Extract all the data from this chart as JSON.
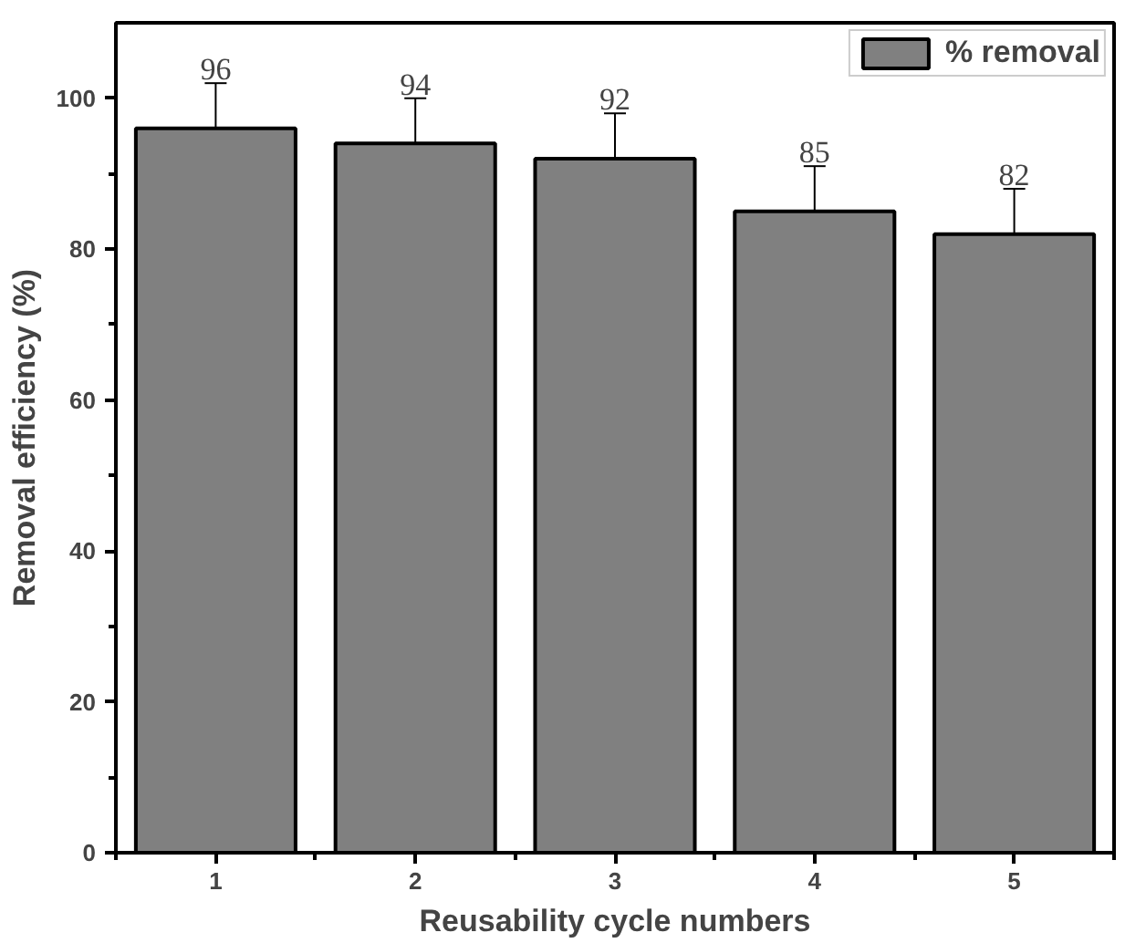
{
  "chart_data": {
    "type": "bar",
    "xlabel": "Reusability cycle numbers",
    "ylabel": "Removal efficiency (%)",
    "x": [
      1,
      2,
      3,
      4,
      5
    ],
    "xlim": [
      0.5,
      5.5
    ],
    "xticks": [
      1,
      2,
      3,
      4,
      5
    ],
    "ylim": [
      0,
      110
    ],
    "yticks": [
      0,
      20,
      40,
      60,
      80,
      100
    ],
    "series": [
      {
        "name": "% removal",
        "color": "#808080",
        "values": [
          96,
          94,
          92,
          85,
          82
        ],
        "errors": [
          6,
          6,
          6,
          6,
          6
        ]
      }
    ],
    "data_labels": true,
    "legend": "top right",
    "grid": false
  }
}
